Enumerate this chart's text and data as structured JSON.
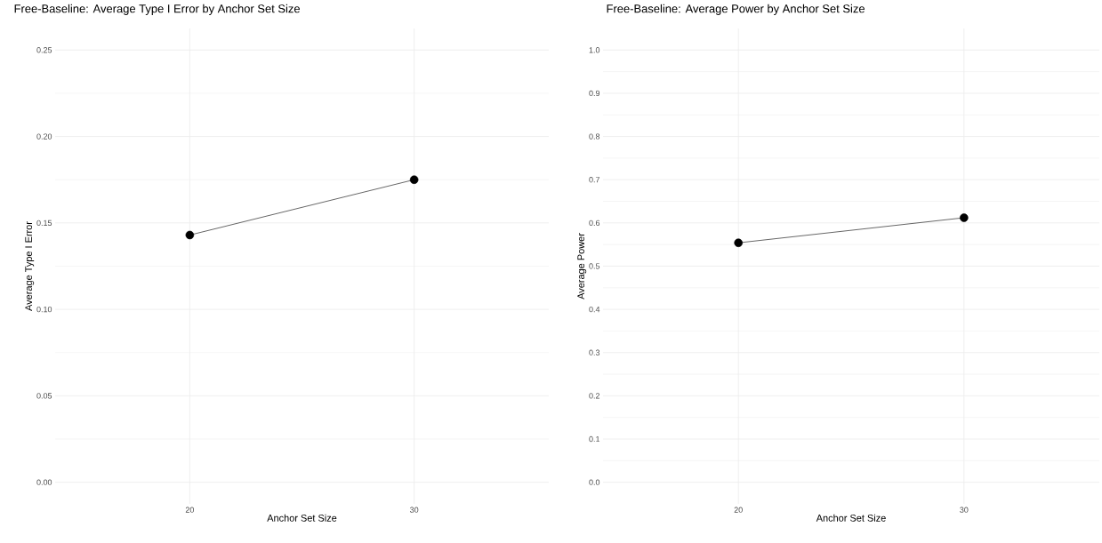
{
  "chart_data": [
    {
      "type": "line",
      "title": "Free-Baseline: Average Type I Error by Anchor Set Size",
      "xlabel": "Anchor Set Size",
      "ylabel": "Average Type I Error",
      "categories": [
        "20",
        "30"
      ],
      "series": [
        {
          "color": "#000000",
          "values": [
            0.143,
            0.175
          ]
        }
      ],
      "ylim": [
        -0.0125,
        0.2625
      ],
      "yticks": [
        {
          "value": 0,
          "label": "0.00"
        },
        {
          "value": 0.05,
          "label": "0.05"
        },
        {
          "value": 0.1,
          "label": "0.10"
        },
        {
          "value": 0.15,
          "label": "0.15"
        },
        {
          "value": 0.2,
          "label": "0.20"
        },
        {
          "value": 0.25,
          "label": "0.25"
        }
      ],
      "grid": true,
      "marker": "circle",
      "line_style": "solid"
    },
    {
      "type": "line",
      "title": "Free-Baseline: Average Power by Anchor Set Size",
      "xlabel": "Anchor Set Size",
      "ylabel": "Average Power",
      "categories": [
        "20",
        "30"
      ],
      "series": [
        {
          "color": "#000000",
          "values": [
            0.554,
            0.612
          ]
        }
      ],
      "ylim": [
        -0.05,
        1.05
      ],
      "yticks": [
        {
          "value": 0,
          "label": "0.0"
        },
        {
          "value": 0.1,
          "label": "0.1"
        },
        {
          "value": 0.2,
          "label": "0.2"
        },
        {
          "value": 0.3,
          "label": "0.3"
        },
        {
          "value": 0.4,
          "label": "0.4"
        },
        {
          "value": 0.5,
          "label": "0.5"
        },
        {
          "value": 0.6,
          "label": "0.6"
        },
        {
          "value": 0.7,
          "label": "0.7"
        },
        {
          "value": 0.8,
          "label": "0.8"
        },
        {
          "value": 0.9,
          "label": "0.9"
        },
        {
          "value": 1,
          "label": "1.0"
        }
      ],
      "grid": true,
      "marker": "circle",
      "line_style": "solid"
    }
  ]
}
